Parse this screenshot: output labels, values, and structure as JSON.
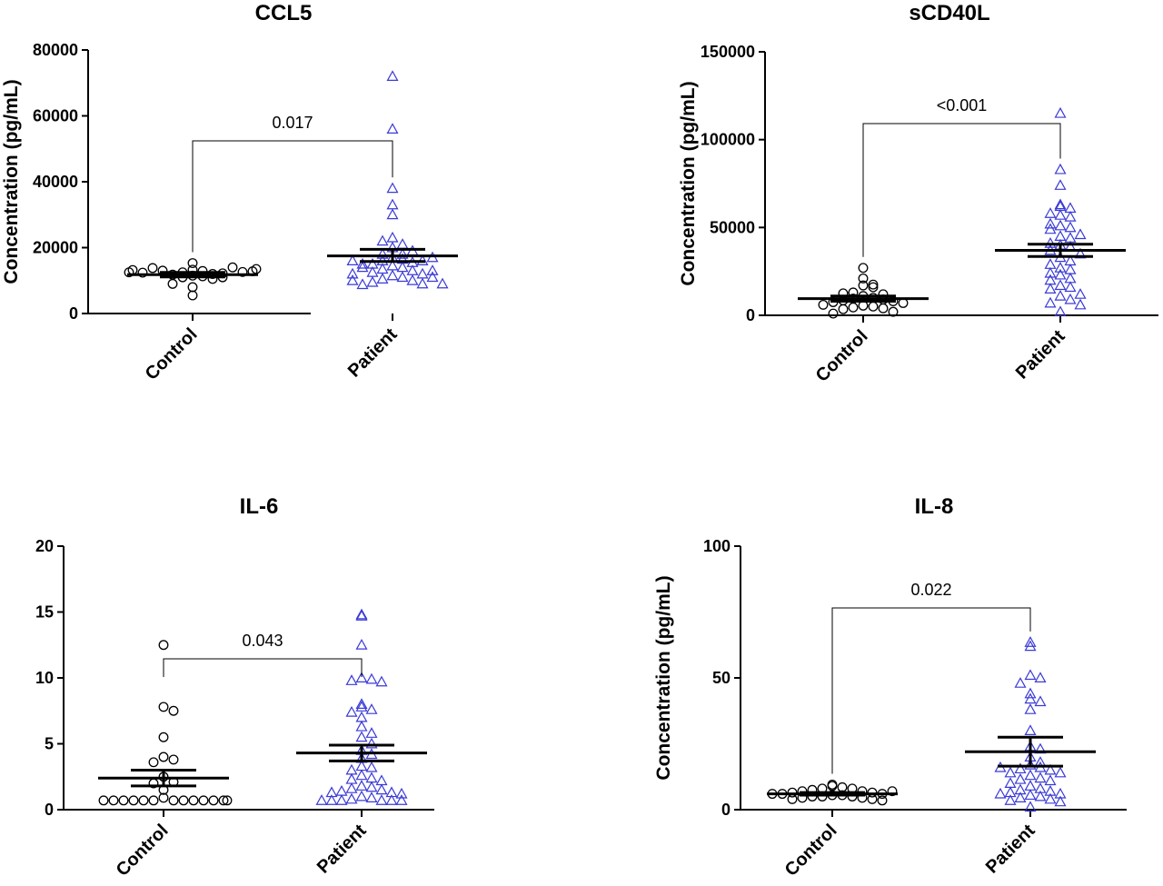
{
  "chart_data": [
    {
      "type": "scatter",
      "title": "CCL5",
      "ylabel": "Concentration (pg/mL)",
      "ylim": [
        0,
        80000
      ],
      "yticks": [
        0,
        20000,
        40000,
        60000,
        80000
      ],
      "categories": [
        "Control",
        "Patient"
      ],
      "p_value": "0.017",
      "series": [
        {
          "name": "Control",
          "values": [
            13300,
            12900,
            12500,
            12000,
            11500,
            11300,
            11000,
            10500,
            11800,
            12200,
            13000,
            14000,
            13800,
            15300,
            12600,
            12400,
            12800,
            13200,
            13500,
            9000,
            11000,
            5500,
            12500,
            8000
          ],
          "mean": 11800,
          "sem_low": 11100,
          "sem_high": 12500
        },
        {
          "name": "Patient",
          "values": [
            72000,
            56000,
            38000,
            33000,
            30000,
            23000,
            21000,
            22000,
            20000,
            18000,
            17000,
            16500,
            16000,
            15500,
            15000,
            14500,
            14000,
            13500,
            13000,
            12500,
            12000,
            11500,
            11000,
            10500,
            10000,
            9500,
            9000,
            8800,
            16000,
            15000,
            14000,
            13000,
            12000,
            11000,
            10000,
            9000,
            17000,
            16000,
            18000,
            19000
          ],
          "mean": 17500,
          "sem_low": 15800,
          "sem_high": 19500
        }
      ]
    },
    {
      "type": "scatter",
      "title": "sCD40L",
      "ylabel": "Concentration (pg/mL)",
      "ylim": [
        0,
        150000
      ],
      "yticks": [
        0,
        50000,
        100000,
        150000
      ],
      "categories": [
        "Control",
        "Patient"
      ],
      "p_value": "<0.001",
      "series": [
        {
          "name": "Control",
          "values": [
            27000,
            21000,
            17000,
            17500,
            16000,
            13000,
            12000,
            11000,
            10000,
            9500,
            9000,
            8500,
            8000,
            7500,
            7000,
            6000,
            5500,
            5000,
            4500,
            4000,
            3500,
            2000,
            1000,
            12500
          ],
          "mean": 9500,
          "sem_low": 8000,
          "sem_high": 11000
        },
        {
          "name": "Patient",
          "values": [
            115000,
            83000,
            74000,
            63000,
            62000,
            61000,
            58000,
            57000,
            56000,
            52000,
            51000,
            50000,
            49000,
            46000,
            45000,
            44000,
            41000,
            40000,
            39000,
            37000,
            35000,
            33000,
            31000,
            29000,
            27000,
            26000,
            24000,
            23000,
            21000,
            20000,
            17000,
            16000,
            15000,
            12000,
            11000,
            9000,
            7000,
            6000,
            2000
          ],
          "mean": 37000,
          "sem_low": 33500,
          "sem_high": 40500
        }
      ]
    },
    {
      "type": "scatter",
      "title": "IL-6",
      "ylabel": "Concentration (pg/mL)",
      "ylim": [
        0,
        20
      ],
      "yticks": [
        0,
        5,
        10,
        15,
        20
      ],
      "categories": [
        "Control",
        "Patient"
      ],
      "p_value": "0.043",
      "series": [
        {
          "name": "Control",
          "values": [
            12.5,
            7.8,
            7.5,
            5.5,
            4.0,
            3.8,
            3.6,
            2.5,
            2.1,
            2.0,
            1.5,
            0.9,
            0.7,
            0.7,
            0.7,
            0.7,
            0.7,
            0.7,
            0.7,
            0.7,
            0.7,
            0.7,
            0.7,
            0.7,
            0.7
          ],
          "mean": 2.4,
          "sem_low": 1.8,
          "sem_high": 3.0
        },
        {
          "name": "Patient",
          "values": [
            14.8,
            14.7,
            12.5,
            10.0,
            9.9,
            9.8,
            9.7,
            8.0,
            7.8,
            7.6,
            7.4,
            7.0,
            6.3,
            5.8,
            5.5,
            5.0,
            4.5,
            4.2,
            3.9,
            3.3,
            3.2,
            3.0,
            2.6,
            2.4,
            2.3,
            2.2,
            1.8,
            1.7,
            1.6,
            1.5,
            1.4,
            1.3,
            1.3,
            1.2,
            1.0,
            0.9,
            0.8,
            0.7,
            0.7,
            0.7,
            0.7,
            0.7,
            0.7
          ],
          "mean": 4.3,
          "sem_low": 3.7,
          "sem_high": 4.9
        }
      ]
    },
    {
      "type": "scatter",
      "title": "IL-8",
      "ylabel": "Concentration (pg/mL)",
      "ylim": [
        0,
        100
      ],
      "yticks": [
        0,
        50,
        100
      ],
      "categories": [
        "Control",
        "Patient"
      ],
      "p_value": "0.022",
      "series": [
        {
          "name": "Control",
          "values": [
            9.5,
            9.0,
            8.5,
            8.0,
            8.0,
            7.5,
            7.0,
            7.0,
            6.5,
            6.5,
            6.0,
            6.0,
            5.5,
            5.5,
            5.0,
            5.0,
            5.0,
            4.5,
            4.5,
            4.0,
            4.0,
            3.5,
            7.0,
            6.0
          ],
          "mean": 6.0,
          "sem_low": 5.5,
          "sem_high": 6.5
        },
        {
          "name": "Patient",
          "values": [
            63.5,
            62.0,
            51.0,
            50.0,
            48.0,
            44.0,
            42.0,
            41.0,
            38.0,
            30.0,
            24.0,
            23.0,
            20.0,
            18.0,
            17.0,
            16.0,
            15.5,
            15.0,
            14.0,
            13.0,
            12.0,
            11.5,
            11.0,
            10.0,
            9.0,
            8.0,
            7.5,
            7.0,
            6.5,
            6.0,
            6.0,
            5.5,
            5.0,
            4.5,
            4.0,
            3.5,
            3.0,
            14.0,
            16.0,
            1.0
          ],
          "mean": 22.0,
          "sem_low": 16.5,
          "sem_high": 27.5
        }
      ]
    }
  ]
}
